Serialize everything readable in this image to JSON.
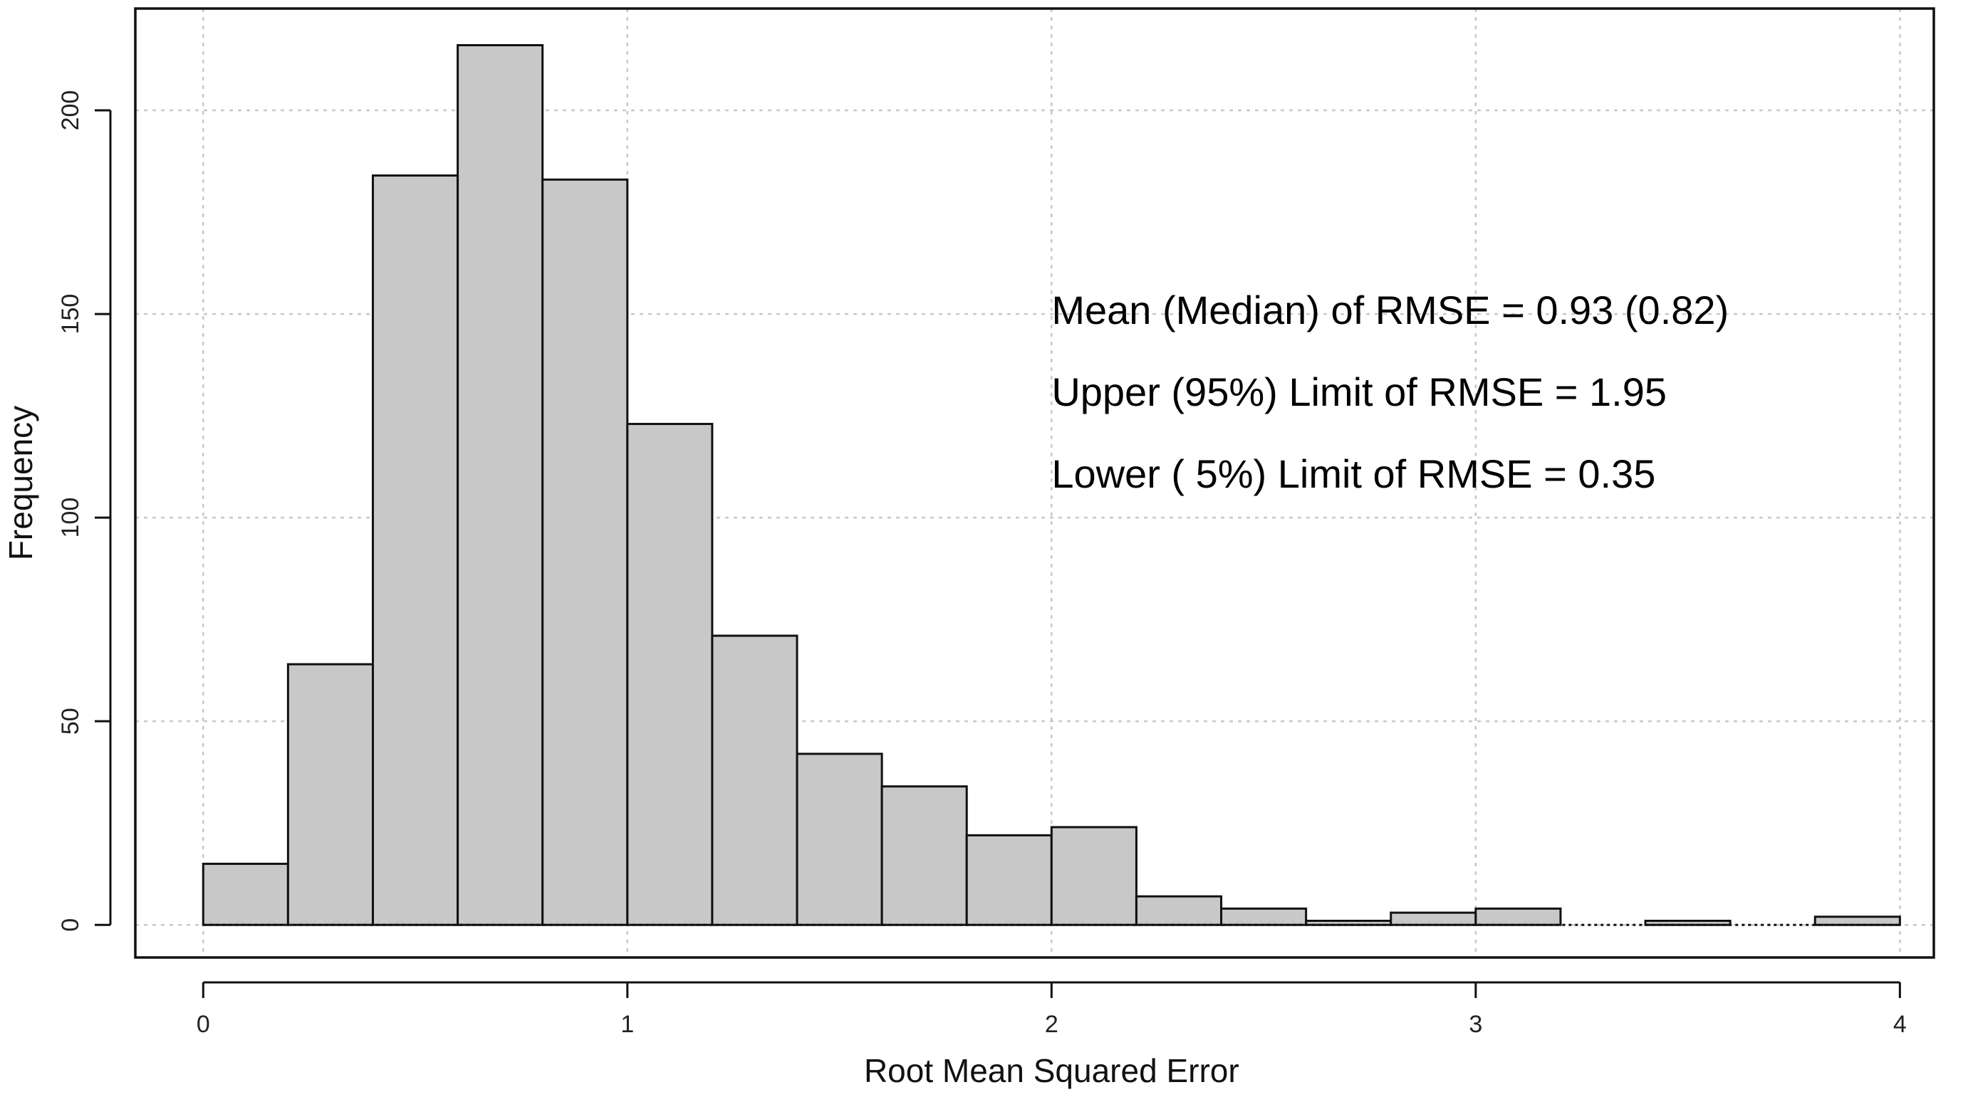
{
  "chart_data": {
    "type": "bar",
    "xlabel": "Root Mean Squared Error",
    "ylabel": "Frequency",
    "xlim": [
      -0.16,
      4.08
    ],
    "ylim": [
      -8,
      225
    ],
    "grid": true,
    "x_ticks": [
      0,
      1,
      2,
      3,
      4
    ],
    "x_tick_labels": [
      "0",
      "1",
      "2",
      "3",
      "4"
    ],
    "y_ticks": [
      0,
      50,
      100,
      150,
      200
    ],
    "y_tick_labels": [
      "0",
      "50",
      "100",
      "150",
      "200"
    ],
    "bin_width": 0.2,
    "bin_starts": [
      0.0,
      0.2,
      0.4,
      0.6,
      0.8,
      1.0,
      1.2,
      1.4,
      1.6,
      1.8,
      2.0,
      2.2,
      2.4,
      2.6,
      2.8,
      3.0,
      3.2,
      3.4,
      3.6,
      3.8
    ],
    "values": [
      15,
      64,
      184,
      216,
      183,
      123,
      71,
      42,
      34,
      22,
      24,
      7,
      4,
      1,
      3,
      4,
      0,
      1,
      0,
      2
    ],
    "annotations": [
      "Mean (Median) of RMSE = 0.93 (0.82)",
      "Upper (95%) Limit of RMSE = 1.95",
      "Lower ( 5%) Limit of RMSE = 0.35"
    ]
  }
}
